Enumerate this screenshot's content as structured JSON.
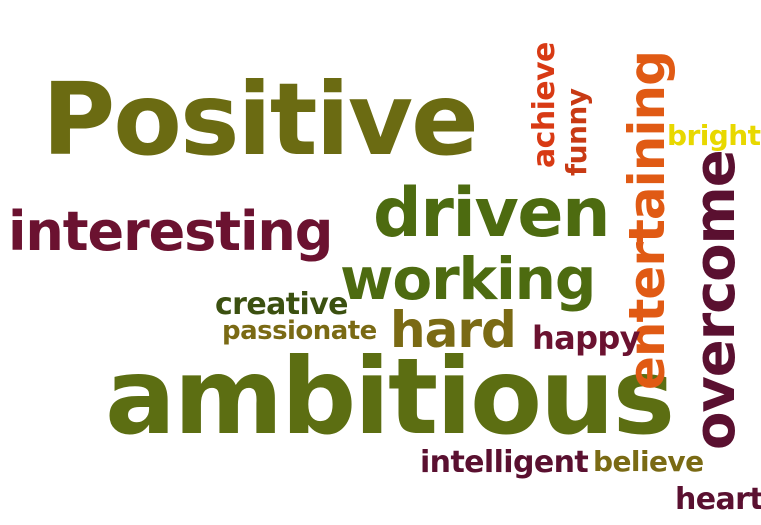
{
  "words": {
    "positive": {
      "text": "Positive",
      "color": "#6b6b12"
    },
    "ambitious": {
      "text": "ambitious",
      "color": "#5c6e12"
    },
    "driven": {
      "text": "driven",
      "color": "#4d6b10"
    },
    "interesting": {
      "text": "interesting",
      "color": "#6b1230"
    },
    "working": {
      "text": "working",
      "color": "#4d6b10"
    },
    "hard": {
      "text": "hard",
      "color": "#7a6a14"
    },
    "entertaining": {
      "text": "entertaining",
      "color": "#e05a14"
    },
    "overcome": {
      "text": "overcome",
      "color": "#5a1030"
    },
    "bright": {
      "text": "bright",
      "color": "#e8d800"
    },
    "achieve": {
      "text": "achieve",
      "color": "#d83a14"
    },
    "funny": {
      "text": "funny",
      "color": "#c83a14"
    },
    "creative": {
      "text": "creative",
      "color": "#3b5010"
    },
    "passionate": {
      "text": "passionate",
      "color": "#7a6a14"
    },
    "happy": {
      "text": "happy",
      "color": "#6b1230"
    },
    "intelligent": {
      "text": "intelligent",
      "color": "#5a1030"
    },
    "believe": {
      "text": "believe",
      "color": "#7a6a14"
    },
    "heart": {
      "text": "heart",
      "color": "#5a1030"
    }
  }
}
